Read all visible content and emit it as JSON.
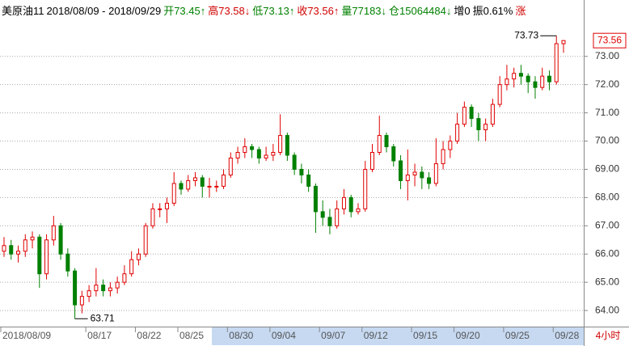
{
  "header": [
    {
      "text": "美原油11",
      "color": "#000000"
    },
    {
      "text": "2018/08/09 - 2018/09/29",
      "color": "#000000"
    },
    {
      "text": "开73.45↑",
      "color": "#008000"
    },
    {
      "text": "高73.58↓",
      "color": "#d00000"
    },
    {
      "text": "低73.13↑",
      "color": "#008000"
    },
    {
      "text": "收73.56↑",
      "color": "#d00000"
    },
    {
      "text": "量77183↓",
      "color": "#008000"
    },
    {
      "text": "仓15064484↓",
      "color": "#008000"
    },
    {
      "text": "增0",
      "color": "#000000"
    },
    {
      "text": "振0.61%",
      "color": "#000000"
    },
    {
      "text": "涨",
      "color": "#d00000"
    }
  ],
  "chart_data": {
    "type": "candlestick",
    "up_color": "#e00000",
    "down_color": "#008000",
    "grid": true,
    "period": "4小时",
    "categories": [
      "2018/08/09",
      null,
      null,
      null,
      null,
      null,
      null,
      null,
      null,
      null,
      null,
      null,
      "08/17",
      null,
      null,
      null,
      null,
      null,
      null,
      "08/22",
      null,
      null,
      null,
      null,
      null,
      "08/25",
      null,
      null,
      null,
      null,
      null,
      null,
      "08/30",
      null,
      null,
      null,
      null,
      null,
      "09/04",
      null,
      null,
      null,
      null,
      null,
      null,
      "09/07",
      null,
      null,
      null,
      null,
      null,
      "09/12",
      null,
      null,
      null,
      null,
      null,
      null,
      "09/15",
      null,
      null,
      null,
      null,
      null,
      "09/20",
      null,
      null,
      null,
      null,
      null,
      null,
      "09/25",
      null,
      null,
      null,
      null,
      null,
      null,
      "09/28",
      null
    ],
    "open": [
      66.1,
      66.3,
      66.0,
      66.1,
      66.5,
      66.6,
      65.3,
      66.5,
      67.0,
      66.0,
      65.4,
      64.2,
      64.5,
      64.7,
      64.9,
      64.7,
      64.8,
      65.0,
      65.3,
      65.8,
      66.0,
      67.0,
      67.6,
      67.6,
      67.8,
      68.5,
      68.3,
      68.6,
      68.7,
      68.4,
      68.4,
      68.4,
      68.8,
      69.4,
      69.6,
      69.8,
      69.7,
      69.4,
      69.5,
      69.6,
      70.2,
      69.5,
      69.0,
      68.8,
      68.4,
      67.5,
      67.3,
      67.0,
      67.6,
      68.0,
      67.5,
      67.6,
      69.0,
      69.6,
      70.2,
      69.8,
      69.3,
      68.6,
      68.8,
      68.9,
      68.7,
      68.5,
      69.2,
      69.7,
      70.0,
      70.6,
      71.2,
      70.8,
      70.4,
      70.6,
      71.3,
      72.0,
      72.2,
      72.4,
      72.3,
      72.1,
      71.9,
      72.3,
      72.1,
      73.45
    ],
    "high": [
      66.6,
      66.5,
      66.3,
      66.7,
      66.8,
      66.7,
      66.7,
      67.35,
      67.1,
      66.2,
      65.5,
      64.7,
      64.9,
      65.5,
      65.1,
      65.0,
      65.2,
      65.6,
      66.1,
      66.2,
      67.1,
      67.8,
      67.8,
      68.0,
      68.9,
      68.6,
      68.8,
      68.9,
      68.8,
      68.7,
      68.6,
      69.0,
      69.6,
      69.8,
      70.1,
      69.9,
      69.8,
      69.8,
      69.9,
      70.95,
      70.3,
      69.6,
      69.2,
      69.0,
      68.5,
      67.9,
      67.6,
      67.9,
      68.3,
      68.1,
      67.8,
      69.3,
      69.9,
      70.9,
      70.3,
      69.9,
      69.5,
      69.7,
      69.2,
      69.1,
      68.9,
      70.1,
      70.0,
      70.2,
      71.0,
      71.4,
      71.3,
      71.0,
      70.8,
      71.5,
      72.3,
      72.7,
      72.6,
      72.7,
      72.4,
      72.3,
      72.6,
      72.5,
      73.73,
      73.58
    ],
    "low": [
      65.9,
      65.8,
      65.7,
      65.9,
      66.2,
      64.8,
      65.1,
      66.3,
      65.8,
      65.2,
      63.71,
      63.9,
      64.3,
      64.5,
      64.5,
      64.5,
      64.6,
      64.9,
      65.2,
      65.6,
      65.9,
      66.9,
      67.3,
      67.1,
      67.7,
      68.1,
      68.2,
      68.4,
      68.0,
      68.0,
      68.2,
      68.3,
      68.7,
      69.2,
      69.4,
      69.4,
      69.2,
      69.3,
      69.3,
      69.5,
      69.3,
      68.8,
      68.5,
      68.2,
      66.75,
      67.0,
      66.7,
      66.9,
      67.4,
      67.3,
      67.4,
      67.5,
      68.9,
      69.5,
      69.6,
      69.1,
      68.3,
      67.9,
      68.4,
      68.3,
      68.3,
      68.4,
      69.0,
      69.4,
      69.9,
      70.5,
      70.5,
      70.0,
      70.0,
      70.5,
      71.2,
      71.8,
      71.9,
      72.0,
      71.7,
      71.5,
      71.8,
      71.8,
      72.0,
      73.13
    ],
    "close": [
      66.3,
      66.0,
      66.1,
      66.5,
      66.6,
      65.3,
      66.5,
      67.0,
      66.0,
      65.4,
      64.2,
      64.5,
      64.7,
      64.9,
      64.7,
      64.8,
      65.0,
      65.3,
      65.8,
      66.0,
      67.0,
      67.6,
      67.6,
      67.8,
      68.5,
      68.3,
      68.6,
      68.7,
      68.4,
      68.4,
      68.4,
      68.8,
      69.4,
      69.6,
      69.8,
      69.7,
      69.4,
      69.5,
      69.6,
      70.2,
      69.5,
      69.0,
      68.8,
      68.4,
      67.5,
      67.3,
      67.0,
      67.6,
      68.0,
      67.5,
      67.6,
      69.0,
      69.6,
      70.2,
      69.8,
      69.3,
      68.6,
      68.8,
      68.9,
      68.7,
      68.5,
      69.2,
      69.7,
      70.0,
      70.6,
      71.2,
      70.8,
      70.4,
      70.6,
      71.3,
      72.0,
      72.2,
      72.4,
      72.3,
      72.1,
      71.9,
      72.3,
      72.1,
      73.45,
      73.56
    ],
    "high_marker": 73.73,
    "low_marker": 63.71,
    "ylim": [
      63.43,
      74.31
    ],
    "yticks": [
      {
        "value": 64,
        "label": "64.00"
      },
      {
        "value": 65,
        "label": "65.00"
      },
      {
        "value": 66,
        "label": "66.00"
      },
      {
        "value": 67,
        "label": "67.00"
      },
      {
        "value": 68,
        "label": "68.00"
      },
      {
        "value": 69,
        "label": "69.00"
      },
      {
        "value": 70,
        "label": "70.00"
      },
      {
        "value": 71,
        "label": "71.00"
      },
      {
        "value": 72,
        "label": "72.00"
      },
      {
        "value": 73,
        "label": "73.00"
      }
    ]
  }
}
